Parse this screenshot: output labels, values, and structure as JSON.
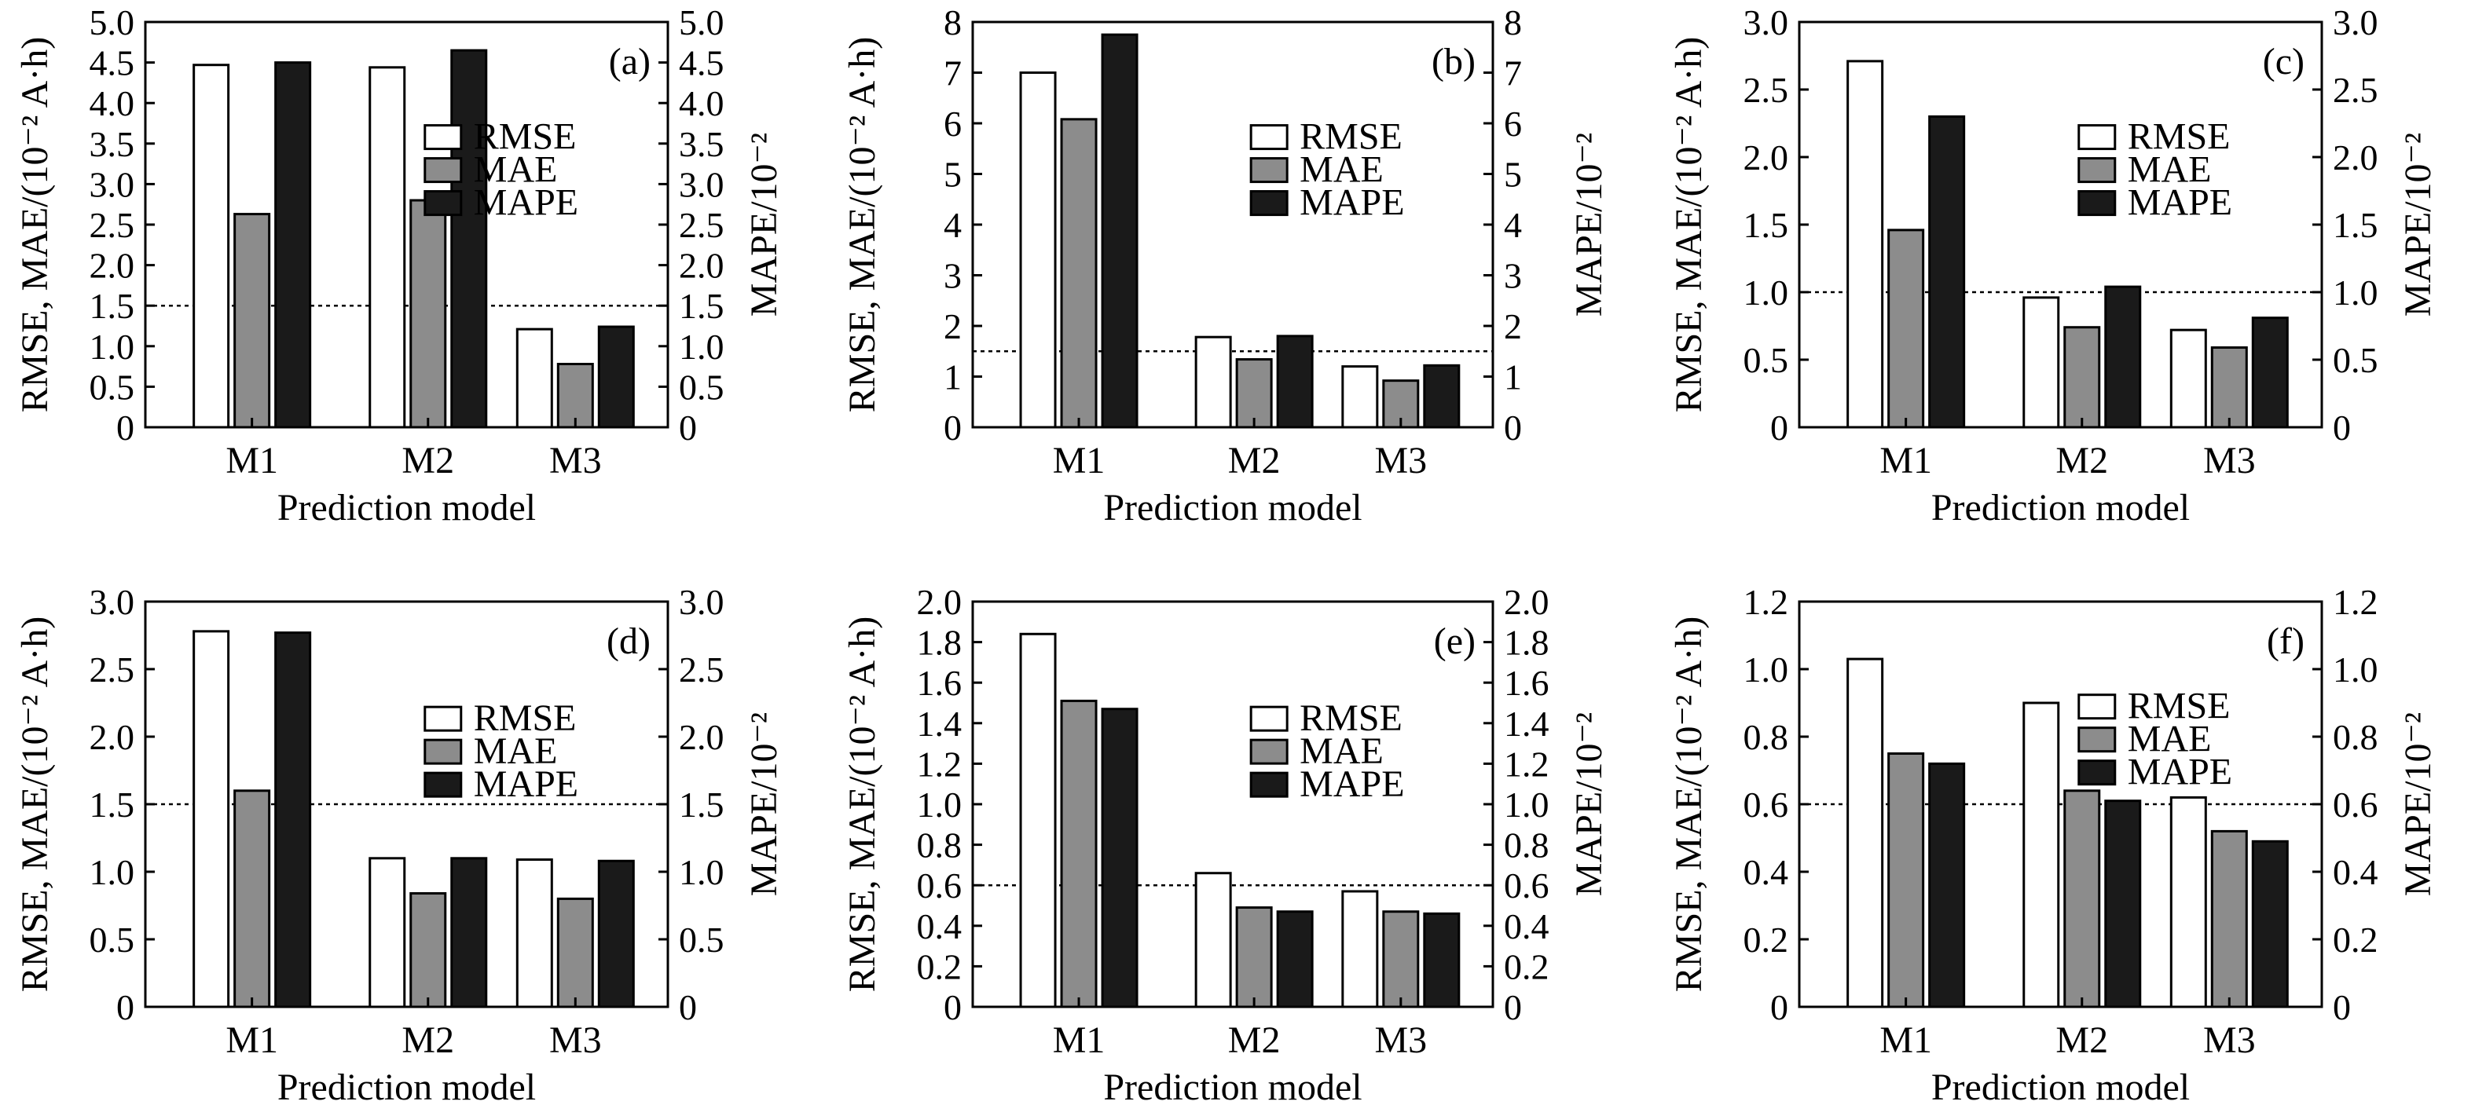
{
  "figure": {
    "legend_labels": [
      "RMSE",
      "MAE",
      "MAPE"
    ],
    "colors": {
      "RMSE": "#ffffff",
      "MAE": "#8c8c8c",
      "MAPE": "#1a1a1a",
      "stroke": "#000000"
    }
  },
  "chart_data": [
    {
      "type": "bar",
      "panel_label": "(a)",
      "categories": [
        "M1",
        "M2",
        "M3"
      ],
      "series": [
        {
          "name": "RMSE",
          "values": [
            4.47,
            4.44,
            1.21
          ]
        },
        {
          "name": "MAE",
          "values": [
            2.63,
            2.8,
            0.78
          ]
        },
        {
          "name": "MAPE",
          "values": [
            4.5,
            4.65,
            1.24
          ]
        }
      ],
      "xlabel": "Prediction model",
      "ylabel": "RMSE, MAE/(10⁻² A·h)",
      "y2label": "MAPE/10⁻²",
      "ylim": [
        0,
        5.0
      ],
      "yticks": [
        "0",
        "0.5",
        "1.0",
        "1.5",
        "2.0",
        "2.5",
        "3.0",
        "3.5",
        "4.0",
        "4.5",
        "5.0"
      ],
      "reference_line": 1.5,
      "grid": false,
      "legend_position": "right"
    },
    {
      "type": "bar",
      "panel_label": "(b)",
      "categories": [
        "M1",
        "M2",
        "M3"
      ],
      "series": [
        {
          "name": "RMSE",
          "values": [
            7.0,
            1.78,
            1.2
          ]
        },
        {
          "name": "MAE",
          "values": [
            6.08,
            1.34,
            0.92
          ]
        },
        {
          "name": "MAPE",
          "values": [
            7.75,
            1.8,
            1.22
          ]
        }
      ],
      "xlabel": "Prediction model",
      "ylabel": "RMSE, MAE/(10⁻² A·h)",
      "y2label": "MAPE/10⁻²",
      "ylim": [
        0,
        8
      ],
      "yticks": [
        "0",
        "1",
        "2",
        "3",
        "4",
        "5",
        "6",
        "7",
        "8"
      ],
      "reference_line": 1.5,
      "grid": false,
      "legend_position": "right"
    },
    {
      "type": "bar",
      "panel_label": "(c)",
      "categories": [
        "M1",
        "M2",
        "M3"
      ],
      "series": [
        {
          "name": "RMSE",
          "values": [
            2.71,
            0.96,
            0.72
          ]
        },
        {
          "name": "MAE",
          "values": [
            1.46,
            0.74,
            0.59
          ]
        },
        {
          "name": "MAPE",
          "values": [
            2.3,
            1.04,
            0.81
          ]
        }
      ],
      "xlabel": "Prediction model",
      "ylabel": "RMSE, MAE/(10⁻² A·h)",
      "y2label": "MAPE/10⁻²",
      "ylim": [
        0,
        3.0
      ],
      "yticks": [
        "0",
        "0.5",
        "1.0",
        "1.5",
        "2.0",
        "2.5",
        "3.0"
      ],
      "reference_line": 1.0,
      "grid": false,
      "legend_position": "right"
    },
    {
      "type": "bar",
      "panel_label": "(d)",
      "categories": [
        "M1",
        "M2",
        "M3"
      ],
      "series": [
        {
          "name": "RMSE",
          "values": [
            2.78,
            1.1,
            1.09
          ]
        },
        {
          "name": "MAE",
          "values": [
            1.6,
            0.84,
            0.8
          ]
        },
        {
          "name": "MAPE",
          "values": [
            2.77,
            1.1,
            1.08
          ]
        }
      ],
      "xlabel": "Prediction model",
      "ylabel": "RMSE, MAE/(10⁻² A·h)",
      "y2label": "MAPE/10⁻²",
      "ylim": [
        0,
        3.0
      ],
      "yticks": [
        "0",
        "0.5",
        "1.0",
        "1.5",
        "2.0",
        "2.5",
        "3.0"
      ],
      "reference_line": 1.5,
      "grid": false,
      "legend_position": "right"
    },
    {
      "type": "bar",
      "panel_label": "(e)",
      "categories": [
        "M1",
        "M2",
        "M3"
      ],
      "series": [
        {
          "name": "RMSE",
          "values": [
            1.84,
            0.66,
            0.57
          ]
        },
        {
          "name": "MAE",
          "values": [
            1.51,
            0.49,
            0.47
          ]
        },
        {
          "name": "MAPE",
          "values": [
            1.47,
            0.47,
            0.46
          ]
        }
      ],
      "xlabel": "Prediction model",
      "ylabel": "RMSE, MAE/(10⁻² A·h)",
      "y2label": "MAPE/10⁻²",
      "ylim": [
        0,
        2.0
      ],
      "yticks": [
        "0",
        "0.2",
        "0.4",
        "0.6",
        "0.8",
        "1.0",
        "1.2",
        "1.4",
        "1.6",
        "1.8",
        "2.0"
      ],
      "reference_line": 0.6,
      "grid": false,
      "legend_position": "right"
    },
    {
      "type": "bar",
      "panel_label": "(f)",
      "categories": [
        "M1",
        "M2",
        "M3"
      ],
      "series": [
        {
          "name": "RMSE",
          "values": [
            1.03,
            0.9,
            0.62
          ]
        },
        {
          "name": "MAE",
          "values": [
            0.75,
            0.64,
            0.52
          ]
        },
        {
          "name": "MAPE",
          "values": [
            0.72,
            0.61,
            0.49
          ]
        }
      ],
      "xlabel": "Prediction model",
      "ylabel": "RMSE, MAE/(10⁻² A·h)",
      "y2label": "MAPE/10⁻²",
      "ylim": [
        0,
        1.2
      ],
      "yticks": [
        "0",
        "0.2",
        "0.4",
        "0.6",
        "0.8",
        "1.0",
        "1.2"
      ],
      "reference_line": 0.6,
      "grid": false,
      "legend_position": "right"
    }
  ]
}
